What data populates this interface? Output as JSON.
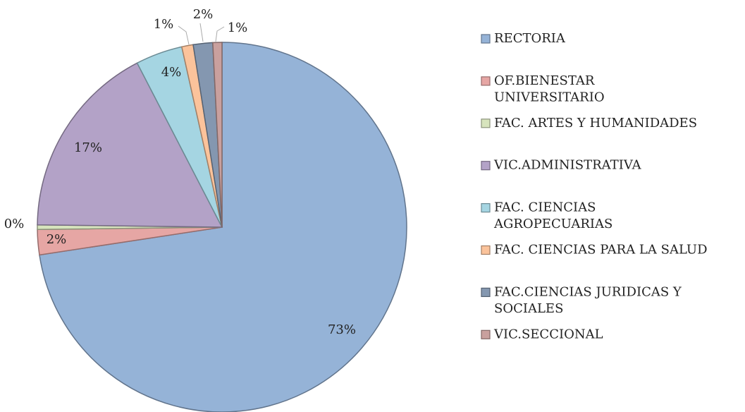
{
  "chart_data": {
    "type": "pie",
    "categories": [
      "RECTORIA",
      "OF.BIENESTAR UNIVERSITARIO",
      "FAC. ARTES Y HUMANIDADES",
      "VIC.ADMINISTRATIVA",
      "FAC. CIENCIAS AGROPECUARIAS",
      "FAC. CIENCIAS PARA LA SALUD",
      "FAC.CIENCIAS JURIDICAS Y SOCIALES",
      "VIC.SECCIONAL"
    ],
    "values": [
      72.6,
      2.2,
      0.4,
      17.2,
      4.1,
      1.0,
      1.7,
      0.8
    ],
    "value_labels": [
      "73%",
      "2%",
      "0%",
      "17%",
      "4%",
      "1%",
      "2%",
      "1%"
    ],
    "colors": [
      "#95b3d7",
      "#e6a6a4",
      "#d7e4bd",
      "#b3a2c7",
      "#a5d5e2",
      "#fbc39b",
      "#8497b0",
      "#c9a09e"
    ],
    "legend": "right"
  }
}
